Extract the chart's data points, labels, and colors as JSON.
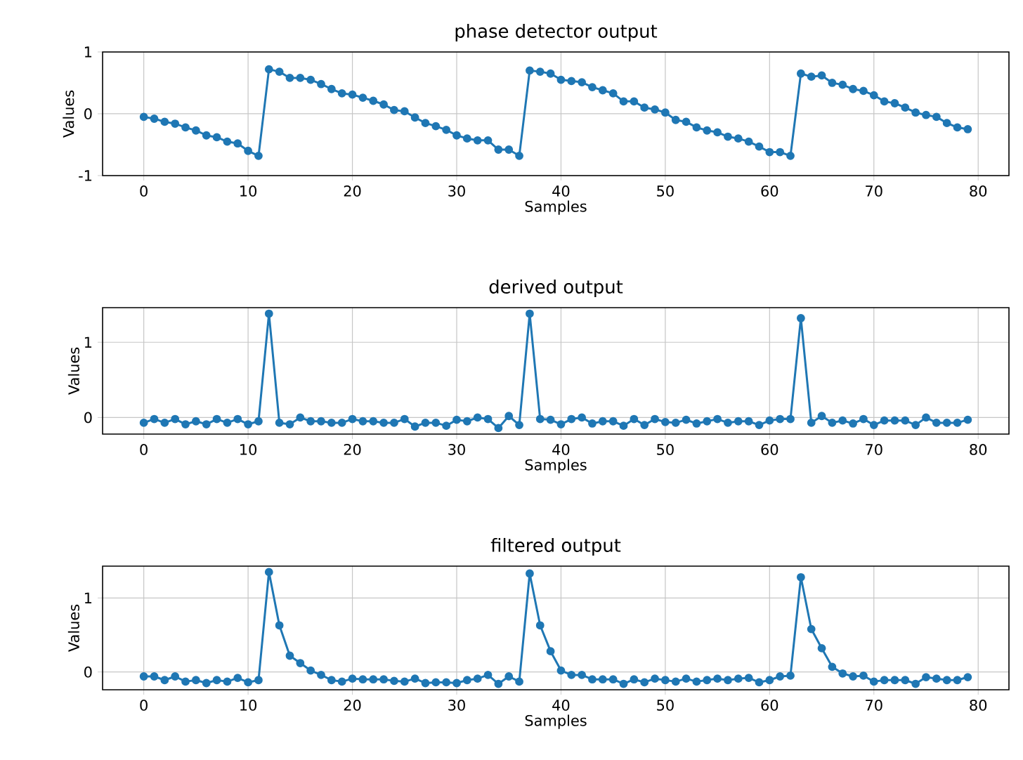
{
  "chart_data": [
    {
      "type": "line",
      "title": "phase detector output",
      "xlabel": "Samples",
      "ylabel": "Values",
      "color": "#1f77b4",
      "marker": "circle",
      "grid": true,
      "x": [
        0,
        1,
        2,
        3,
        4,
        5,
        6,
        7,
        8,
        9,
        10,
        11,
        12,
        13,
        14,
        15,
        16,
        17,
        18,
        19,
        20,
        21,
        22,
        23,
        24,
        25,
        26,
        27,
        28,
        29,
        30,
        31,
        32,
        33,
        34,
        35,
        36,
        37,
        38,
        39,
        40,
        41,
        42,
        43,
        44,
        45,
        46,
        47,
        48,
        49,
        50,
        51,
        52,
        53,
        54,
        55,
        56,
        57,
        58,
        59,
        60,
        61,
        62,
        63,
        64,
        65,
        66,
        67,
        68,
        69,
        70,
        71,
        72,
        73,
        74,
        75,
        76,
        77,
        78,
        79
      ],
      "values": [
        -0.05,
        -0.08,
        -0.13,
        -0.16,
        -0.22,
        -0.27,
        -0.35,
        -0.38,
        -0.45,
        -0.48,
        -0.6,
        -0.68,
        0.72,
        0.68,
        0.58,
        0.58,
        0.55,
        0.48,
        0.4,
        0.33,
        0.31,
        0.26,
        0.21,
        0.15,
        0.06,
        0.04,
        -0.06,
        -0.15,
        -0.2,
        -0.26,
        -0.35,
        -0.4,
        -0.43,
        -0.43,
        -0.58,
        -0.58,
        -0.68,
        0.7,
        0.68,
        0.65,
        0.55,
        0.53,
        0.51,
        0.43,
        0.38,
        0.33,
        0.2,
        0.2,
        0.1,
        0.07,
        0.02,
        -0.1,
        -0.13,
        -0.22,
        -0.27,
        -0.3,
        -0.37,
        -0.4,
        -0.45,
        -0.53,
        -0.62,
        -0.62,
        -0.68,
        0.65,
        0.6,
        0.62,
        0.5,
        0.47,
        0.4,
        0.37,
        0.3,
        0.2,
        0.17,
        0.1,
        0.02,
        -0.02,
        -0.05,
        -0.15,
        -0.22,
        -0.25
      ],
      "xlim": [
        -3.95,
        82.95
      ],
      "ylim": [
        -1,
        1
      ],
      "xticks": [
        0,
        10,
        20,
        30,
        40,
        50,
        60,
        70,
        80
      ],
      "yticks": [
        -1,
        0,
        1
      ]
    },
    {
      "type": "line",
      "title": "derived output",
      "xlabel": "Samples",
      "ylabel": "Values",
      "color": "#1f77b4",
      "marker": "circle",
      "grid": true,
      "x": [
        0,
        1,
        2,
        3,
        4,
        5,
        6,
        7,
        8,
        9,
        10,
        11,
        12,
        13,
        14,
        15,
        16,
        17,
        18,
        19,
        20,
        21,
        22,
        23,
        24,
        25,
        26,
        27,
        28,
        29,
        30,
        31,
        32,
        33,
        34,
        35,
        36,
        37,
        38,
        39,
        40,
        41,
        42,
        43,
        44,
        45,
        46,
        47,
        48,
        49,
        50,
        51,
        52,
        53,
        54,
        55,
        56,
        57,
        58,
        59,
        60,
        61,
        62,
        63,
        64,
        65,
        66,
        67,
        68,
        69,
        70,
        71,
        72,
        73,
        74,
        75,
        76,
        77,
        78,
        79
      ],
      "values": [
        -0.07,
        -0.02,
        -0.07,
        -0.02,
        -0.09,
        -0.05,
        -0.09,
        -0.02,
        -0.07,
        -0.02,
        -0.09,
        -0.05,
        1.38,
        -0.07,
        -0.09,
        0,
        -0.05,
        -0.05,
        -0.07,
        -0.07,
        -0.02,
        -0.05,
        -0.05,
        -0.07,
        -0.07,
        -0.02,
        -0.12,
        -0.07,
        -0.07,
        -0.11,
        -0.03,
        -0.05,
        0,
        -0.02,
        -0.14,
        0.02,
        -0.1,
        1.38,
        -0.02,
        -0.03,
        -0.09,
        -0.02,
        0,
        -0.08,
        -0.05,
        -0.05,
        -0.11,
        -0.02,
        -0.1,
        -0.02,
        -0.06,
        -0.07,
        -0.03,
        -0.08,
        -0.05,
        -0.02,
        -0.07,
        -0.05,
        -0.05,
        -0.1,
        -0.04,
        -0.02,
        -0.02,
        1.32,
        -0.07,
        0.02,
        -0.07,
        -0.04,
        -0.08,
        -0.02,
        -0.1,
        -0.04,
        -0.04,
        -0.04,
        -0.1,
        0,
        -0.07,
        -0.07,
        -0.07,
        -0.03
      ],
      "xlim": [
        -3.95,
        82.95
      ],
      "ylim": [
        -0.22,
        1.46
      ],
      "xticks": [
        0,
        10,
        20,
        30,
        40,
        50,
        60,
        70,
        80
      ],
      "yticks": [
        0,
        1
      ]
    },
    {
      "type": "line",
      "title": "filtered output",
      "xlabel": "Samples",
      "ylabel": "Values",
      "color": "#1f77b4",
      "marker": "circle",
      "grid": true,
      "x": [
        0,
        1,
        2,
        3,
        4,
        5,
        6,
        7,
        8,
        9,
        10,
        11,
        12,
        13,
        14,
        15,
        16,
        17,
        18,
        19,
        20,
        21,
        22,
        23,
        24,
        25,
        26,
        27,
        28,
        29,
        30,
        31,
        32,
        33,
        34,
        35,
        36,
        37,
        38,
        39,
        40,
        41,
        42,
        43,
        44,
        45,
        46,
        47,
        48,
        49,
        50,
        51,
        52,
        53,
        54,
        55,
        56,
        57,
        58,
        59,
        60,
        61,
        62,
        63,
        64,
        65,
        66,
        67,
        68,
        69,
        70,
        71,
        72,
        73,
        74,
        75,
        76,
        77,
        78,
        79
      ],
      "values": [
        -0.06,
        -0.06,
        -0.11,
        -0.06,
        -0.13,
        -0.11,
        -0.15,
        -0.11,
        -0.13,
        -0.08,
        -0.14,
        -0.11,
        1.35,
        0.63,
        0.22,
        0.12,
        0.02,
        -0.04,
        -0.11,
        -0.13,
        -0.09,
        -0.1,
        -0.1,
        -0.1,
        -0.12,
        -0.13,
        -0.09,
        -0.15,
        -0.14,
        -0.14,
        -0.15,
        -0.11,
        -0.09,
        -0.04,
        -0.16,
        -0.06,
        -0.13,
        1.33,
        0.63,
        0.28,
        0.02,
        -0.04,
        -0.04,
        -0.1,
        -0.1,
        -0.1,
        -0.16,
        -0.1,
        -0.14,
        -0.09,
        -0.11,
        -0.13,
        -0.09,
        -0.13,
        -0.11,
        -0.09,
        -0.11,
        -0.09,
        -0.08,
        -0.14,
        -0.11,
        -0.06,
        -0.05,
        1.28,
        0.58,
        0.32,
        0.07,
        -0.02,
        -0.06,
        -0.05,
        -0.13,
        -0.11,
        -0.11,
        -0.11,
        -0.16,
        -0.07,
        -0.09,
        -0.11,
        -0.11,
        -0.07
      ],
      "xlim": [
        -3.95,
        82.95
      ],
      "ylim": [
        -0.24,
        1.43
      ],
      "xticks": [
        0,
        10,
        20,
        30,
        40,
        50,
        60,
        70,
        80
      ],
      "yticks": [
        0,
        1
      ]
    }
  ]
}
